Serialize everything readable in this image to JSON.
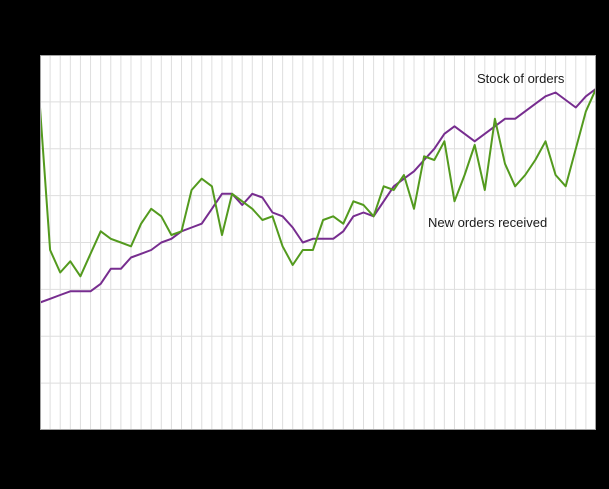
{
  "chart_data": {
    "type": "line",
    "title": "",
    "n_points": 56,
    "x_axis": {
      "tick_labels_visible": false
    },
    "y_axis": {
      "tick_labels_visible": false
    },
    "ylim": [
      0,
      100
    ],
    "note": "Axis tick labels are not visible in the screenshot; values estimated on a 0-100 plot-relative scale",
    "grid": {
      "horizontal": true,
      "vertical": true,
      "h_divisions": 8,
      "color": "#dedede"
    },
    "frame_color": "#a3a3a3",
    "background": "#ffffff",
    "outer_background": "#000000",
    "legend_position": "inline-annotations",
    "series": [
      {
        "name": "Stock of orders",
        "color": "#772d8f",
        "values": [
          34,
          35,
          36,
          37,
          37,
          37,
          39,
          43,
          43,
          46,
          47,
          48,
          50,
          51,
          53,
          54,
          55,
          59,
          63,
          63,
          60,
          63,
          62,
          58,
          57,
          54,
          50,
          51,
          51,
          51,
          53,
          57,
          58,
          57,
          61,
          65,
          67,
          69,
          72,
          75,
          79,
          81,
          79,
          77,
          79,
          81,
          83,
          83,
          85,
          87,
          89,
          90,
          88,
          86,
          89,
          91
        ]
      },
      {
        "name": "New orders received",
        "color": "#539a1e",
        "values": [
          86,
          48,
          42,
          45,
          41,
          47,
          53,
          51,
          50,
          49,
          55,
          59,
          57,
          52,
          53,
          64,
          67,
          65,
          52,
          63,
          61,
          59,
          56,
          57,
          49,
          44,
          48,
          48,
          56,
          57,
          55,
          61,
          60,
          57,
          65,
          64,
          68,
          59,
          73,
          72,
          77,
          61,
          68,
          76,
          64,
          83,
          71,
          65,
          68,
          72,
          77,
          68,
          65,
          75,
          85,
          91
        ]
      }
    ],
    "annotations": [
      {
        "text": "Stock of orders"
      },
      {
        "text": "New orders received"
      }
    ]
  }
}
